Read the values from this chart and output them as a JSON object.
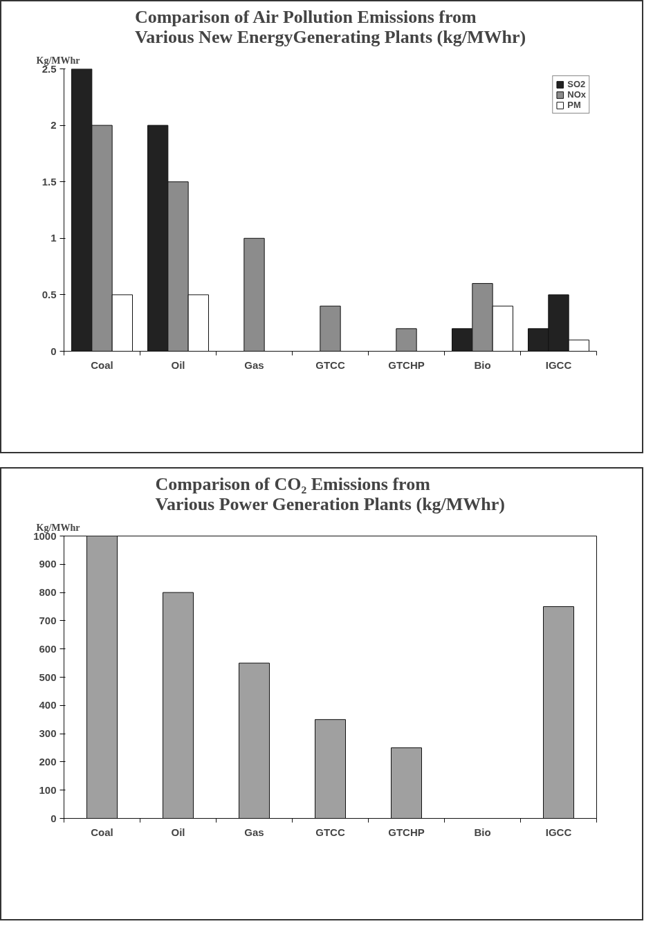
{
  "chart_data": [
    {
      "type": "bar",
      "title": "Comparison of Air Pollution Emissions from\nVarious New EnergyGenerating Plants (kg/MWhr)",
      "ylabel": "Kg/MWhr",
      "categories": [
        "Coal",
        "Oil",
        "Gas",
        "GTCC",
        "GTCHP",
        "Bio",
        "IGCC"
      ],
      "series": [
        {
          "name": "SO2",
          "color": "#222222",
          "values": [
            2.5,
            2,
            null,
            null,
            null,
            0.2,
            0.2
          ]
        },
        {
          "name": "NOx",
          "color": "#8c8c8c",
          "colors": [
            "#8c8c8c",
            "#8c8c8c",
            "#8c8c8c",
            "#8c8c8c",
            "#8c8c8c",
            "#8c8c8c",
            "#222222"
          ],
          "values": [
            2,
            1.5,
            1,
            0.4,
            0.2,
            0.6,
            0.5
          ]
        },
        {
          "name": "PM",
          "color": "#ffffff",
          "values": [
            0.5,
            0.5,
            null,
            null,
            null,
            0.4,
            0.1
          ]
        }
      ],
      "ylim": [
        0,
        2.5
      ],
      "yticks": [
        0,
        0.5,
        1,
        1.5,
        2,
        2.5
      ],
      "grid": false,
      "legend": "top right"
    },
    {
      "type": "bar",
      "title": "Comparison of CO₂ Emissions from\nVarious Power Generation Plants (kg/MWhr)",
      "ylabel": "Kg/MWhr",
      "categories": [
        "Coal",
        "Oil",
        "Gas",
        "GTCC",
        "GTCHP",
        "Bio",
        "IGCC"
      ],
      "values": [
        1000,
        800,
        550,
        350,
        250,
        null,
        750
      ],
      "color": "#a0a0a0",
      "ylim": [
        0,
        1000
      ],
      "yticks": [
        0,
        100,
        200,
        300,
        400,
        500,
        600,
        700,
        800,
        900,
        1000
      ],
      "grid": false,
      "legend": false
    }
  ]
}
